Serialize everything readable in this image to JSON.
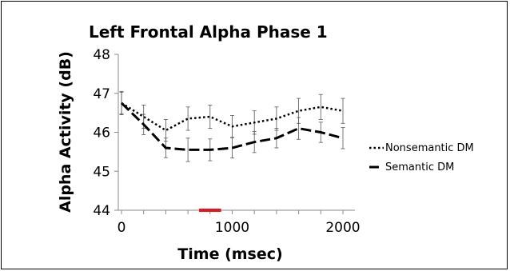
{
  "chart_data": {
    "type": "line",
    "title": "Left Frontal Alpha Phase 1",
    "xlabel": "Time (msec)",
    "ylabel": "Alpha Activity (dB)",
    "xlim": [
      0,
      2000
    ],
    "ylim": [
      44,
      48
    ],
    "x_ticks": [
      0,
      1000,
      2000
    ],
    "x_tick_labels": [
      "0",
      "1000",
      "2000"
    ],
    "y_ticks": [
      44,
      45,
      46,
      47,
      48
    ],
    "y_tick_labels": [
      "44",
      "45",
      "46",
      "47",
      "48"
    ],
    "x": [
      0,
      200,
      400,
      600,
      800,
      1000,
      1200,
      1400,
      1600,
      1800,
      2000
    ],
    "series": [
      {
        "name": "Nonsemantic DM",
        "style": "dotted",
        "values": [
          46.75,
          46.4,
          46.05,
          46.35,
          46.4,
          46.15,
          46.25,
          46.35,
          46.55,
          46.65,
          46.55
        ],
        "error": [
          0.3,
          0.3,
          0.28,
          0.3,
          0.3,
          0.28,
          0.3,
          0.3,
          0.32,
          0.32,
          0.32
        ]
      },
      {
        "name": "Semantic DM",
        "style": "dashed",
        "values": [
          46.75,
          46.2,
          45.6,
          45.55,
          45.55,
          45.6,
          45.75,
          45.85,
          46.1,
          46.0,
          45.85
        ],
        "error": [
          0.28,
          0.26,
          0.25,
          0.3,
          0.28,
          0.26,
          0.27,
          0.25,
          0.28,
          0.26,
          0.27
        ]
      }
    ],
    "highlight": {
      "x_range": [
        700,
        900
      ],
      "color": "#e8141b"
    },
    "legend_position": "right",
    "grid": false
  }
}
